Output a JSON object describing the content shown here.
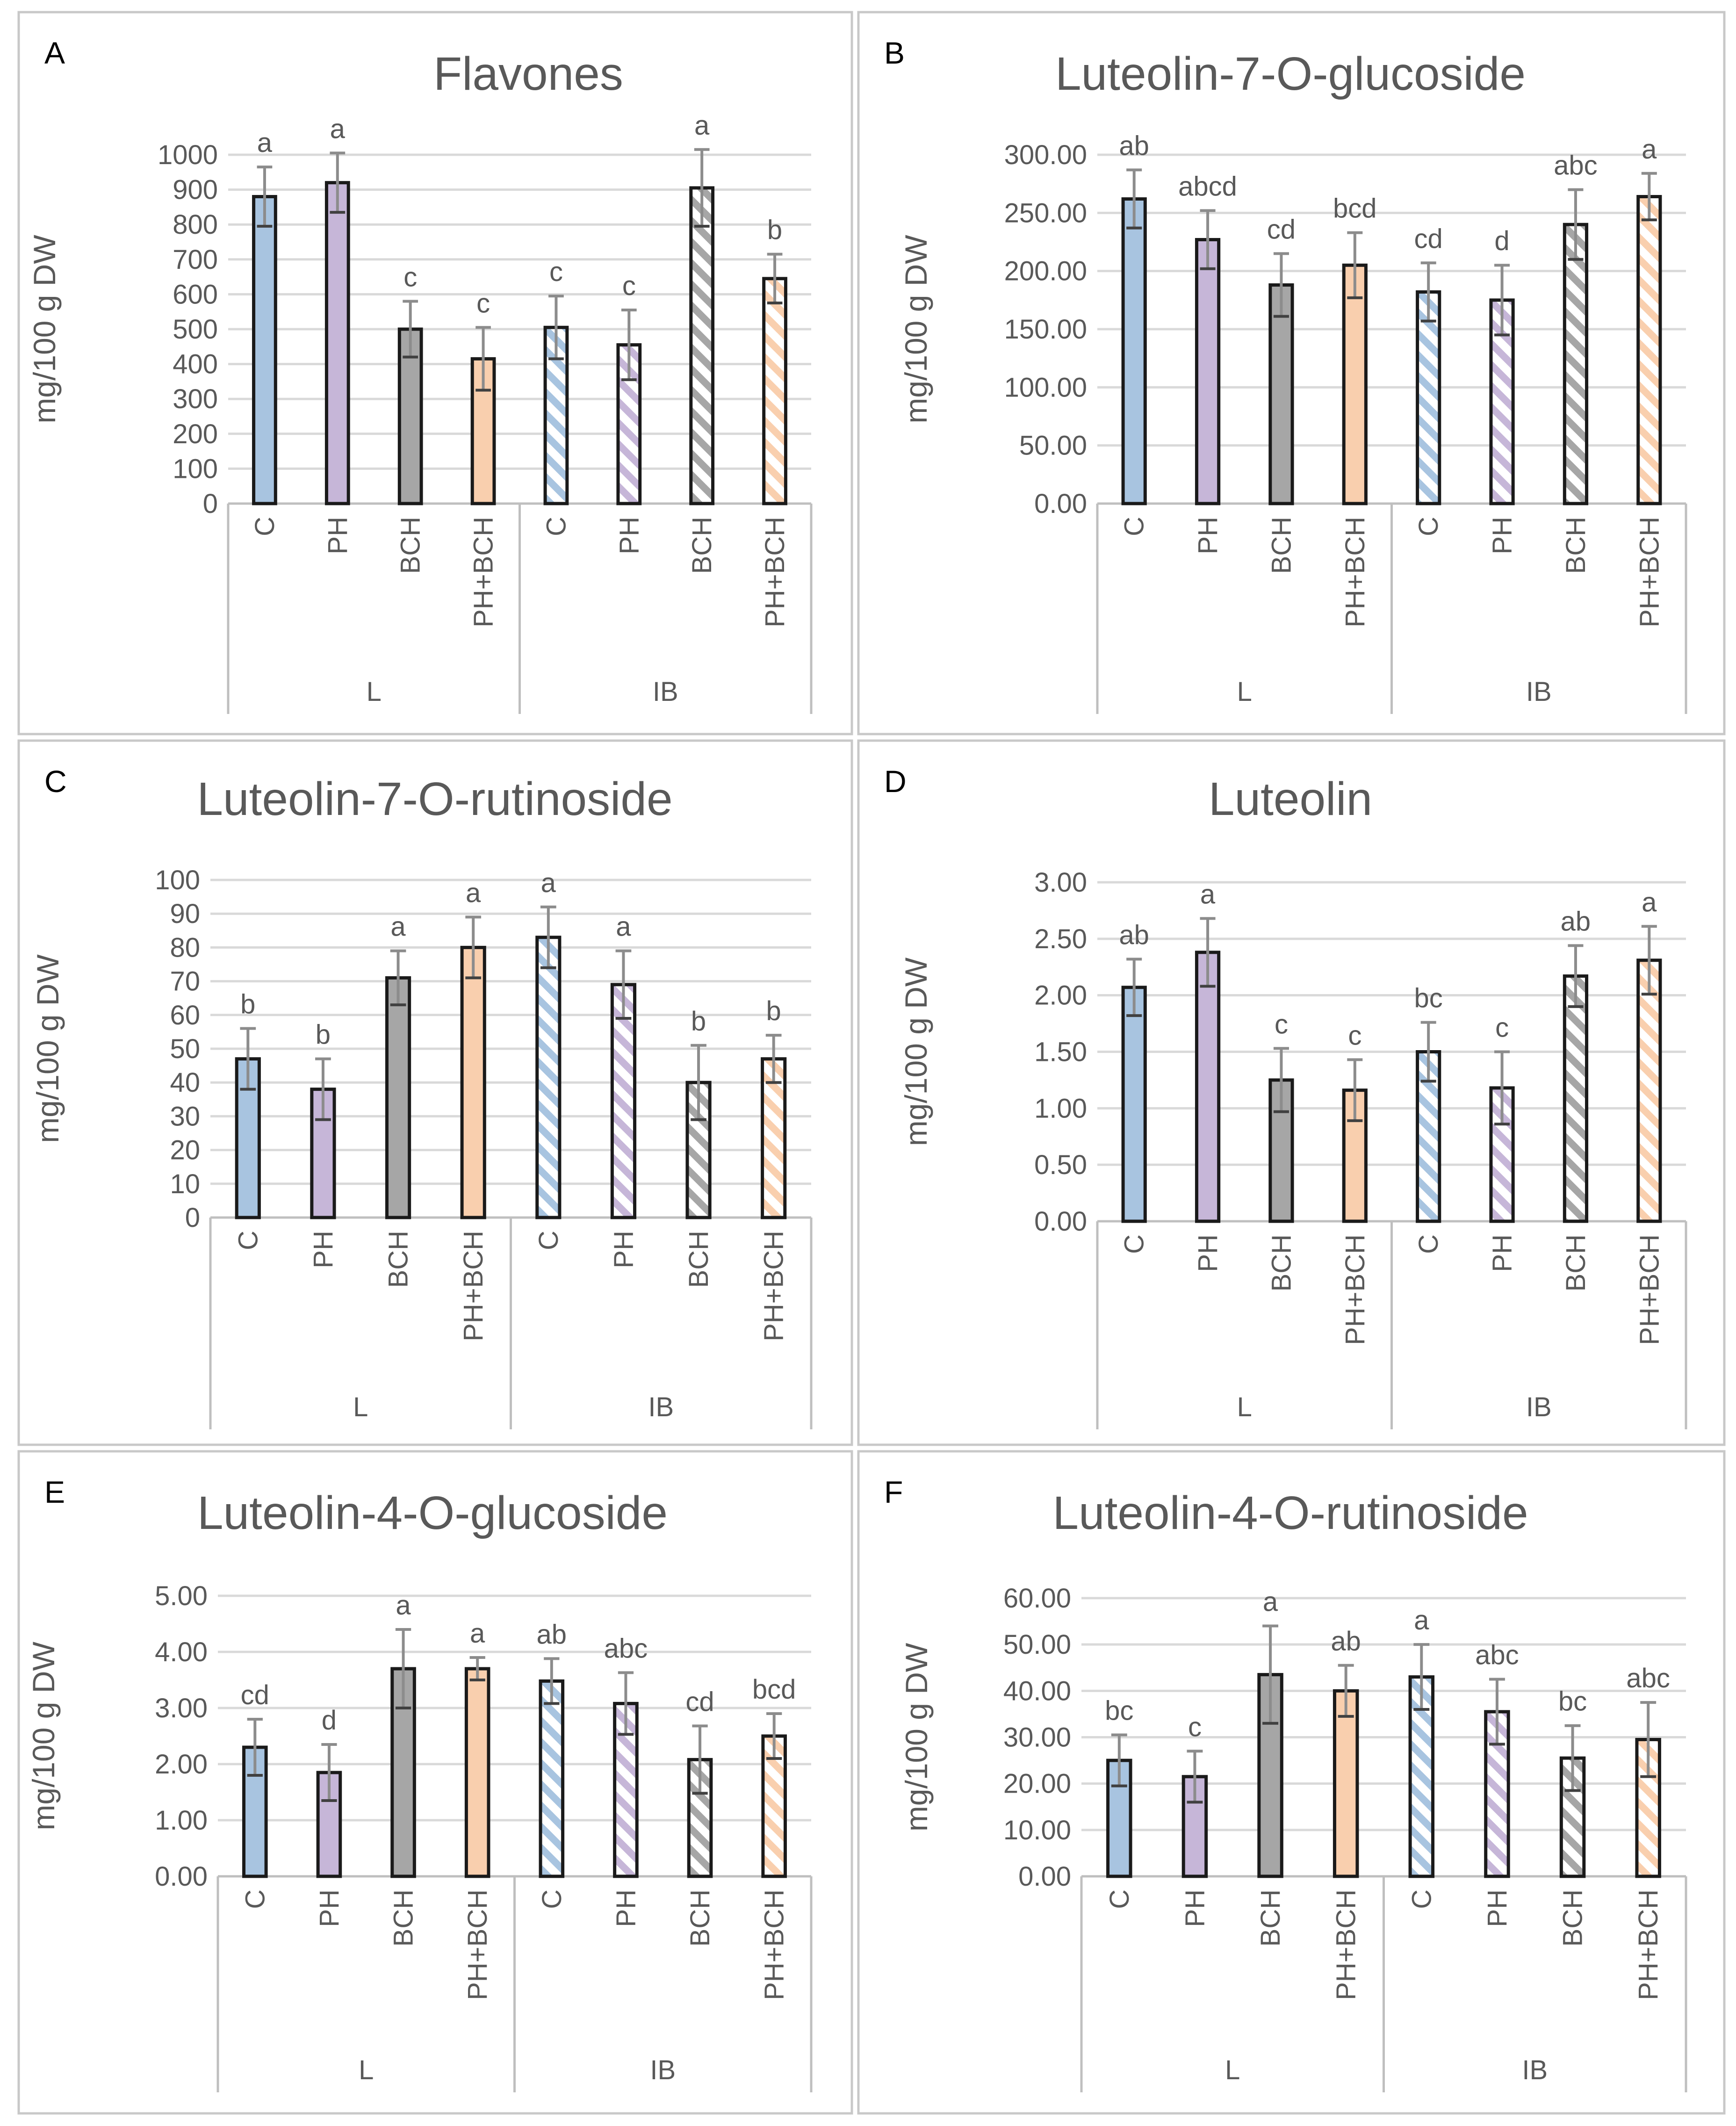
{
  "colors": {
    "C": "#a8c4e0",
    "PH": "#c6b6d8",
    "BCH": "#a6a6a6",
    "PH+BCH": "#f9cfae",
    "outline": "#1a1a1a"
  },
  "chart_data": [
    {
      "panel_letter": "A",
      "type": "bar",
      "title": "Flavones",
      "ylabel": "mg/100 g DW",
      "ylim": [
        0,
        1000
      ],
      "yticks": [
        "0",
        "100",
        "200",
        "300",
        "400",
        "500",
        "600",
        "700",
        "800",
        "900",
        "1000"
      ],
      "categories": [
        "C",
        "PH",
        "BCH",
        "PH+BCH",
        "C",
        "PH",
        "BCH",
        "PH+BCH"
      ],
      "groups": [
        "L",
        "IB"
      ],
      "values": [
        880,
        920,
        500,
        415,
        505,
        455,
        905,
        645
      ],
      "errors": [
        85,
        85,
        80,
        90,
        90,
        100,
        110,
        70
      ],
      "significance": [
        "a",
        "a",
        "c",
        "c",
        "c",
        "c",
        "a",
        "b"
      ]
    },
    {
      "panel_letter": "B",
      "type": "bar",
      "title": "Luteolin-7-O-glucoside",
      "ylabel": "mg/100 g DW",
      "ylim": [
        0,
        300
      ],
      "yticks": [
        "0.00",
        "50.00",
        "100.00",
        "150.00",
        "200.00",
        "250.00",
        "300.00"
      ],
      "categories": [
        "C",
        "PH",
        "BCH",
        "PH+BCH",
        "C",
        "PH",
        "BCH",
        "PH+BCH"
      ],
      "groups": [
        "L",
        "IB"
      ],
      "values": [
        262,
        227,
        188,
        205,
        182,
        175,
        240,
        264
      ],
      "errors": [
        25,
        25,
        27,
        28,
        25,
        30,
        30,
        20
      ],
      "significance": [
        "ab",
        "abcd",
        "cd",
        "bcd",
        "cd",
        "d",
        "abc",
        "a"
      ]
    },
    {
      "panel_letter": "C",
      "type": "bar",
      "title": "Luteolin-7-O-rutinoside",
      "ylabel": "mg/100 g DW",
      "ylim": [
        0,
        100
      ],
      "yticks": [
        "0",
        "10",
        "20",
        "30",
        "40",
        "50",
        "60",
        "70",
        "80",
        "90",
        "100"
      ],
      "categories": [
        "C",
        "PH",
        "BCH",
        "PH+BCH",
        "C",
        "PH",
        "BCH",
        "PH+BCH"
      ],
      "groups": [
        "L",
        "IB"
      ],
      "values": [
        47,
        38,
        71,
        80,
        83,
        69,
        40,
        47
      ],
      "errors": [
        9,
        9,
        8,
        9,
        9,
        10,
        11,
        7
      ],
      "significance": [
        "b",
        "b",
        "a",
        "a",
        "a",
        "a",
        "b",
        "b"
      ]
    },
    {
      "panel_letter": "D",
      "type": "bar",
      "title": "Luteolin",
      "ylabel": "mg/100 g DW",
      "ylim": [
        0,
        3
      ],
      "yticks": [
        "0.00",
        "0.50",
        "1.00",
        "1.50",
        "2.00",
        "2.50",
        "3.00"
      ],
      "categories": [
        "C",
        "PH",
        "BCH",
        "PH+BCH",
        "C",
        "PH",
        "BCH",
        "PH+BCH"
      ],
      "groups": [
        "L",
        "IB"
      ],
      "values": [
        2.07,
        2.38,
        1.25,
        1.16,
        1.5,
        1.18,
        2.17,
        2.31
      ],
      "errors": [
        0.25,
        0.3,
        0.28,
        0.27,
        0.26,
        0.32,
        0.27,
        0.3
      ],
      "significance": [
        "ab",
        "a",
        "c",
        "c",
        "bc",
        "c",
        "ab",
        "a"
      ]
    },
    {
      "panel_letter": "E",
      "type": "bar",
      "title": "Luteolin-4-O-glucoside",
      "ylabel": "mg/100 g DW",
      "ylim": [
        0,
        5
      ],
      "yticks": [
        "0.00",
        "1.00",
        "2.00",
        "3.00",
        "4.00",
        "5.00"
      ],
      "categories": [
        "C",
        "PH",
        "BCH",
        "PH+BCH",
        "C",
        "PH",
        "BCH",
        "PH+BCH"
      ],
      "groups": [
        "L",
        "IB"
      ],
      "values": [
        2.3,
        1.85,
        3.7,
        3.7,
        3.48,
        3.08,
        2.08,
        2.5
      ],
      "errors": [
        0.5,
        0.5,
        0.7,
        0.2,
        0.4,
        0.55,
        0.6,
        0.4
      ],
      "significance": [
        "cd",
        "d",
        "a",
        "a",
        "ab",
        "abc",
        "cd",
        "bcd"
      ]
    },
    {
      "panel_letter": "F",
      "type": "bar",
      "title": "Luteolin-4-O-rutinoside",
      "ylabel": "mg/100 g DW",
      "ylim": [
        0,
        60
      ],
      "yticks": [
        "0.00",
        "10.00",
        "20.00",
        "30.00",
        "40.00",
        "50.00",
        "60.00"
      ],
      "categories": [
        "C",
        "PH",
        "BCH",
        "PH+BCH",
        "C",
        "PH",
        "BCH",
        "PH+BCH"
      ],
      "groups": [
        "L",
        "IB"
      ],
      "values": [
        25,
        21.5,
        43.5,
        40,
        43,
        35.5,
        25.5,
        29.5
      ],
      "errors": [
        5.5,
        5.5,
        10.5,
        5.5,
        7,
        7,
        7,
        8
      ],
      "significance": [
        "bc",
        "c",
        "a",
        "ab",
        "a",
        "abc",
        "bc",
        "abc"
      ]
    }
  ]
}
